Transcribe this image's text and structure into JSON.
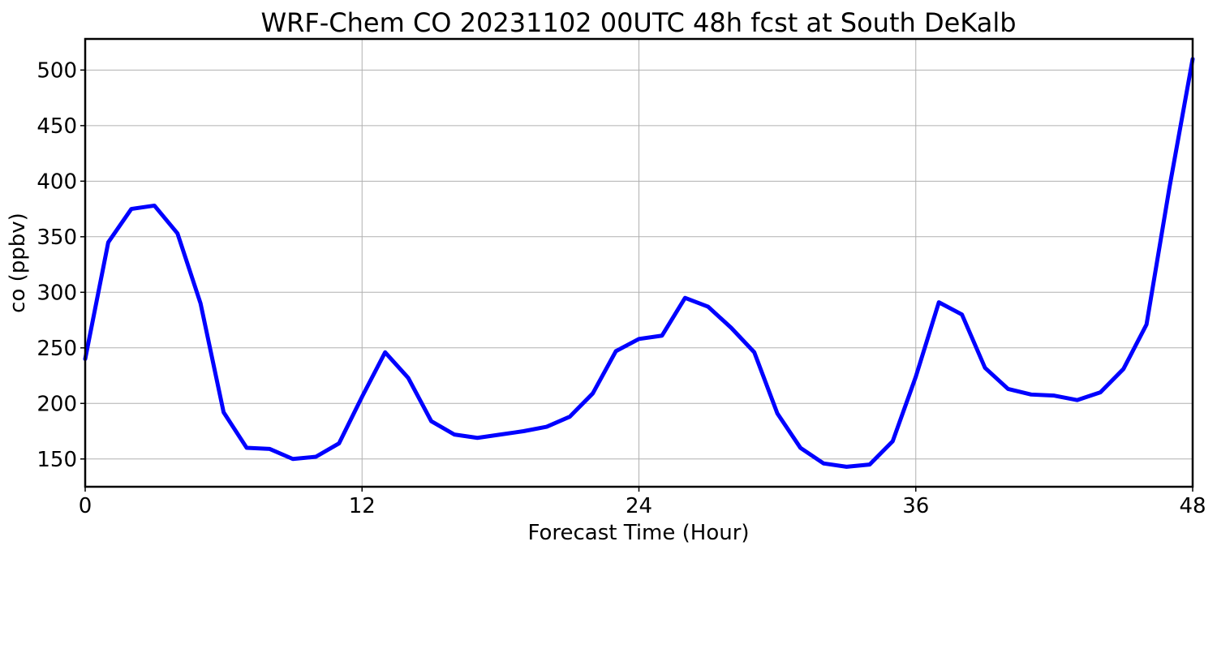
{
  "chart_data": {
    "type": "line",
    "title": "WRF-Chem CO  20231102 00UTC 48h fcst at South DeKalb",
    "xlabel": "Forecast Time (Hour)",
    "ylabel": "co  (ppbv)",
    "xlim": [
      0,
      48
    ],
    "ylim": [
      125,
      528
    ],
    "xticks": [
      0,
      12,
      24,
      36,
      48
    ],
    "yticks": [
      150,
      200,
      250,
      300,
      350,
      400,
      450,
      500
    ],
    "grid": true,
    "line_color": "#0000ff",
    "x": [
      0,
      1,
      2,
      3,
      4,
      5,
      6,
      7,
      8,
      9,
      10,
      11,
      12,
      13,
      14,
      15,
      16,
      17,
      18,
      19,
      20,
      21,
      22,
      23,
      24,
      25,
      26,
      27,
      28,
      29,
      30,
      31,
      32,
      33,
      34,
      35,
      36,
      37,
      38,
      39,
      40,
      41,
      42,
      43,
      44,
      45,
      46,
      47,
      48
    ],
    "values": [
      240,
      345,
      375,
      378,
      353,
      290,
      192,
      160,
      159,
      150,
      152,
      164,
      206,
      246,
      223,
      184,
      172,
      169,
      172,
      175,
      179,
      188,
      209,
      247,
      258,
      261,
      295,
      287,
      268,
      246,
      191,
      160,
      146,
      143,
      145,
      166,
      224,
      291,
      280,
      232,
      213,
      208,
      207,
      203,
      210,
      231,
      271,
      395,
      510
    ]
  }
}
